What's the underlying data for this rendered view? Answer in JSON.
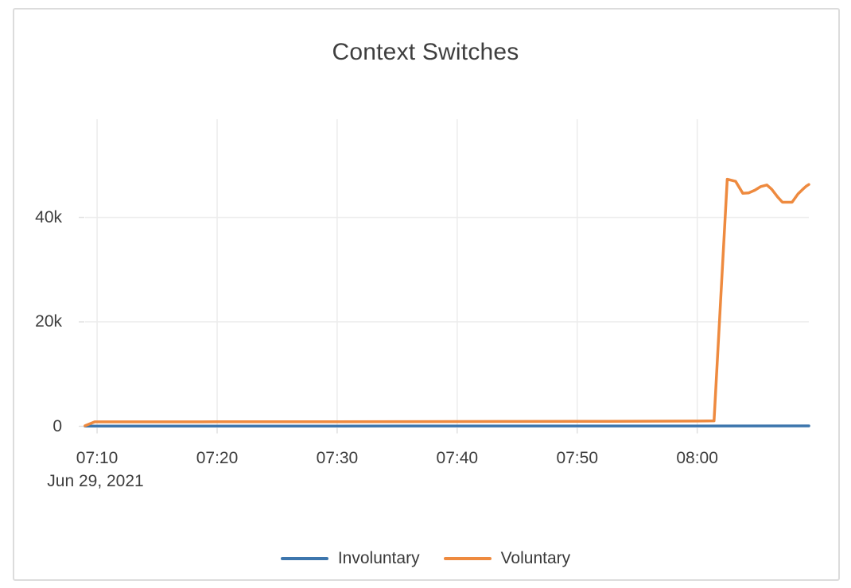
{
  "card": {
    "border_color": "#dcdcdc",
    "background_color": "#ffffff"
  },
  "chart_data": {
    "type": "line",
    "title": "Context Switches",
    "title_color": "#3e3e3e",
    "grid_color": "#ececec",
    "tick_color": "#e0e0e0",
    "axis_text_color": "#3e3e3e",
    "legend_position": "bottom-center",
    "grid": true,
    "x_axis": {
      "date_label": "Jun 29, 2021",
      "range_minutes": [
        9,
        69.3
      ],
      "ticks": [
        {
          "minute": 10,
          "label": "07:10"
        },
        {
          "minute": 20,
          "label": "07:20"
        },
        {
          "minute": 30,
          "label": "07:30"
        },
        {
          "minute": 40,
          "label": "07:40"
        },
        {
          "minute": 50,
          "label": "07:50"
        },
        {
          "minute": 60,
          "label": "08:00"
        }
      ]
    },
    "y_axis": {
      "range": [
        0,
        58800
      ],
      "ticks": [
        {
          "value": 0,
          "label": "0"
        },
        {
          "value": 20000,
          "label": "20k"
        },
        {
          "value": 40000,
          "label": "40k"
        }
      ]
    },
    "series": [
      {
        "name": "Involuntary",
        "color": "#3d76ad",
        "points": [
          [
            9,
            40
          ],
          [
            20,
            50
          ],
          [
            30,
            50
          ],
          [
            40,
            55
          ],
          [
            50,
            60
          ],
          [
            60,
            60
          ],
          [
            69.3,
            70
          ]
        ]
      },
      {
        "name": "Voluntary",
        "color": "#ee8a3f",
        "points": [
          [
            9,
            100
          ],
          [
            9.8,
            850
          ],
          [
            15,
            850
          ],
          [
            20,
            860
          ],
          [
            25,
            860
          ],
          [
            30,
            870
          ],
          [
            35,
            900
          ],
          [
            40,
            920
          ],
          [
            45,
            930
          ],
          [
            50,
            950
          ],
          [
            55,
            980
          ],
          [
            60,
            1000
          ],
          [
            61.4,
            1050
          ],
          [
            62.5,
            47300
          ],
          [
            63.2,
            46900
          ],
          [
            63.8,
            44600
          ],
          [
            64.3,
            44700
          ],
          [
            64.8,
            45200
          ],
          [
            65.3,
            45900
          ],
          [
            65.8,
            46200
          ],
          [
            66.2,
            45400
          ],
          [
            66.7,
            43900
          ],
          [
            67.1,
            42900
          ],
          [
            67.9,
            42900
          ],
          [
            68.4,
            44500
          ],
          [
            68.8,
            45400
          ],
          [
            69.1,
            46000
          ],
          [
            69.3,
            46300
          ]
        ]
      }
    ]
  }
}
